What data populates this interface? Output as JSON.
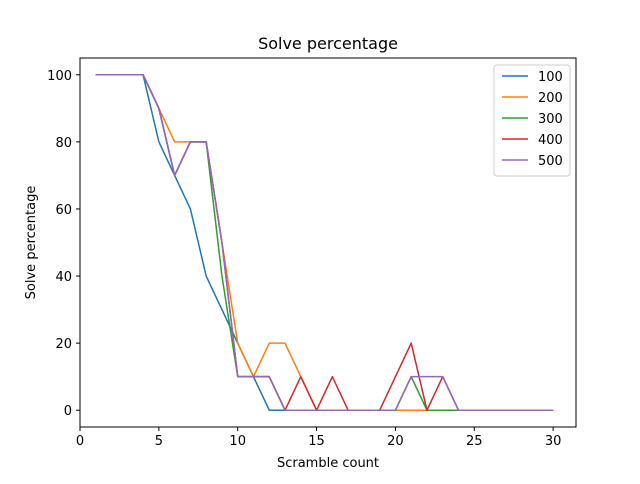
{
  "chart_data": {
    "type": "line",
    "title": "Solve percentage",
    "xlabel": "Scramble count",
    "ylabel": "Solve percentage",
    "xlim": [
      0.0,
      31.45
    ],
    "ylim": [
      -5,
      105
    ],
    "xticks": [
      0,
      5,
      10,
      15,
      20,
      25,
      30
    ],
    "yticks": [
      0,
      20,
      40,
      60,
      80,
      100
    ],
    "grid": false,
    "legend_position": "top-right",
    "x": [
      1,
      2,
      3,
      4,
      5,
      6,
      7,
      8,
      9,
      10,
      11,
      12,
      13,
      14,
      15,
      16,
      17,
      18,
      19,
      20,
      21,
      22,
      23,
      24,
      25,
      26,
      27,
      28,
      29,
      30
    ],
    "series": [
      {
        "name": "100",
        "color": "#1f77b4",
        "values": [
          100,
          100,
          100,
          100,
          80,
          70,
          60,
          40,
          30,
          20,
          10,
          0,
          0,
          0,
          0,
          0,
          0,
          0,
          0,
          0,
          0,
          0,
          0,
          0,
          0,
          0,
          0,
          0,
          0,
          0
        ]
      },
      {
        "name": "200",
        "color": "#ff7f0e",
        "values": [
          100,
          100,
          100,
          100,
          90,
          80,
          80,
          80,
          50,
          20,
          10,
          20,
          20,
          10,
          0,
          0,
          0,
          0,
          0,
          0,
          0,
          0,
          0,
          0,
          0,
          0,
          0,
          0,
          0,
          0
        ]
      },
      {
        "name": "300",
        "color": "#2ca02c",
        "values": [
          100,
          100,
          100,
          100,
          90,
          70,
          80,
          80,
          40,
          10,
          10,
          10,
          0,
          0,
          0,
          0,
          0,
          0,
          0,
          0,
          10,
          0,
          0,
          0,
          0,
          0,
          0,
          0,
          0,
          0
        ]
      },
      {
        "name": "400",
        "color": "#d62728",
        "values": [
          100,
          100,
          100,
          100,
          90,
          70,
          80,
          80,
          50,
          10,
          10,
          10,
          0,
          10,
          0,
          10,
          0,
          0,
          0,
          10,
          20,
          0,
          10,
          0,
          0,
          0,
          0,
          0,
          0,
          0
        ]
      },
      {
        "name": "500",
        "color": "#9467bd",
        "values": [
          100,
          100,
          100,
          100,
          90,
          70,
          80,
          80,
          50,
          10,
          10,
          10,
          0,
          0,
          0,
          0,
          0,
          0,
          0,
          0,
          10,
          10,
          10,
          0,
          0,
          0,
          0,
          0,
          0,
          0
        ]
      }
    ]
  }
}
